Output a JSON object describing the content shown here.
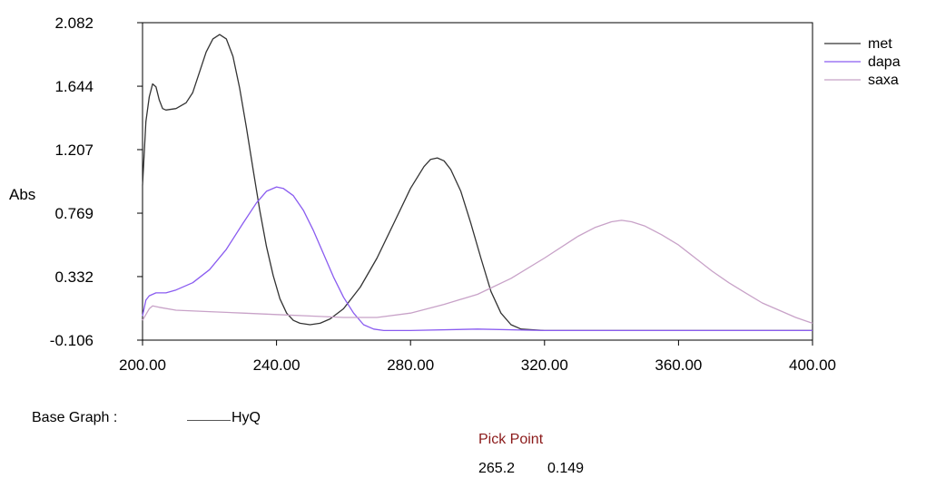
{
  "chart_data": {
    "type": "line",
    "ylabel": "Abs",
    "xlim": [
      200,
      400
    ],
    "ylim": [
      -0.106,
      2.082
    ],
    "x_ticks": [
      "200.00",
      "240.00",
      "280.00",
      "320.00",
      "360.00",
      "400.00"
    ],
    "y_ticks": [
      "2.082",
      "1.644",
      "1.207",
      "0.769",
      "0.332",
      "-0.106"
    ],
    "legend_position": "top-right",
    "series": [
      {
        "name": "met",
        "color": "#333333",
        "points": [
          [
            200,
            0.96
          ],
          [
            201,
            1.4
          ],
          [
            202,
            1.57
          ],
          [
            203,
            1.66
          ],
          [
            204,
            1.64
          ],
          [
            205,
            1.55
          ],
          [
            206,
            1.49
          ],
          [
            207,
            1.48
          ],
          [
            210,
            1.49
          ],
          [
            213,
            1.53
          ],
          [
            215,
            1.6
          ],
          [
            217,
            1.74
          ],
          [
            219,
            1.88
          ],
          [
            221,
            1.97
          ],
          [
            223,
            2.0
          ],
          [
            225,
            1.97
          ],
          [
            227,
            1.85
          ],
          [
            229,
            1.63
          ],
          [
            231,
            1.36
          ],
          [
            233,
            1.07
          ],
          [
            235,
            0.79
          ],
          [
            237,
            0.54
          ],
          [
            239,
            0.34
          ],
          [
            241,
            0.18
          ],
          [
            243,
            0.08
          ],
          [
            245,
            0.03
          ],
          [
            247,
            0.01
          ],
          [
            250,
            0.0
          ],
          [
            253,
            0.01
          ],
          [
            256,
            0.04
          ],
          [
            260,
            0.11
          ],
          [
            265,
            0.26
          ],
          [
            270,
            0.46
          ],
          [
            275,
            0.7
          ],
          [
            280,
            0.94
          ],
          [
            284,
            1.09
          ],
          [
            286,
            1.14
          ],
          [
            288,
            1.15
          ],
          [
            290,
            1.13
          ],
          [
            292,
            1.07
          ],
          [
            295,
            0.92
          ],
          [
            298,
            0.7
          ],
          [
            301,
            0.46
          ],
          [
            304,
            0.23
          ],
          [
            307,
            0.08
          ],
          [
            310,
            0.0
          ],
          [
            313,
            -0.03
          ],
          [
            320,
            -0.04
          ],
          [
            340,
            -0.04
          ],
          [
            360,
            -0.04
          ],
          [
            380,
            -0.04
          ],
          [
            400,
            -0.04
          ]
        ]
      },
      {
        "name": "dapa",
        "color": "#8a5cf0",
        "points": [
          [
            200,
            0.06
          ],
          [
            201,
            0.17
          ],
          [
            202,
            0.2
          ],
          [
            204,
            0.22
          ],
          [
            207,
            0.22
          ],
          [
            210,
            0.24
          ],
          [
            215,
            0.29
          ],
          [
            220,
            0.38
          ],
          [
            225,
            0.52
          ],
          [
            230,
            0.7
          ],
          [
            234,
            0.84
          ],
          [
            237,
            0.92
          ],
          [
            240,
            0.95
          ],
          [
            242,
            0.94
          ],
          [
            245,
            0.89
          ],
          [
            248,
            0.79
          ],
          [
            251,
            0.65
          ],
          [
            254,
            0.49
          ],
          [
            257,
            0.33
          ],
          [
            260,
            0.19
          ],
          [
            263,
            0.08
          ],
          [
            266,
            0.0
          ],
          [
            269,
            -0.03
          ],
          [
            272,
            -0.04
          ],
          [
            280,
            -0.04
          ],
          [
            300,
            -0.03
          ],
          [
            320,
            -0.04
          ],
          [
            340,
            -0.04
          ],
          [
            360,
            -0.04
          ],
          [
            380,
            -0.04
          ],
          [
            400,
            -0.04
          ]
        ]
      },
      {
        "name": "saxa",
        "color": "#c8a2c8",
        "points": [
          [
            200,
            0.03
          ],
          [
            201,
            0.07
          ],
          [
            202,
            0.11
          ],
          [
            203,
            0.13
          ],
          [
            205,
            0.12
          ],
          [
            210,
            0.1
          ],
          [
            220,
            0.09
          ],
          [
            230,
            0.08
          ],
          [
            240,
            0.07
          ],
          [
            250,
            0.06
          ],
          [
            260,
            0.05
          ],
          [
            270,
            0.05
          ],
          [
            280,
            0.08
          ],
          [
            290,
            0.14
          ],
          [
            300,
            0.21
          ],
          [
            310,
            0.32
          ],
          [
            320,
            0.46
          ],
          [
            330,
            0.61
          ],
          [
            335,
            0.67
          ],
          [
            340,
            0.71
          ],
          [
            343,
            0.72
          ],
          [
            346,
            0.71
          ],
          [
            350,
            0.68
          ],
          [
            355,
            0.62
          ],
          [
            360,
            0.55
          ],
          [
            365,
            0.46
          ],
          [
            370,
            0.37
          ],
          [
            375,
            0.29
          ],
          [
            380,
            0.22
          ],
          [
            385,
            0.15
          ],
          [
            390,
            0.1
          ],
          [
            395,
            0.05
          ],
          [
            400,
            0.01
          ]
        ]
      }
    ]
  },
  "footer": {
    "base_graph_label": "Base Graph :",
    "base_graph_value": "HyQ",
    "pick_point_label": "Pick Point",
    "pick_point_x": "265.2",
    "pick_point_y": "0.149"
  }
}
